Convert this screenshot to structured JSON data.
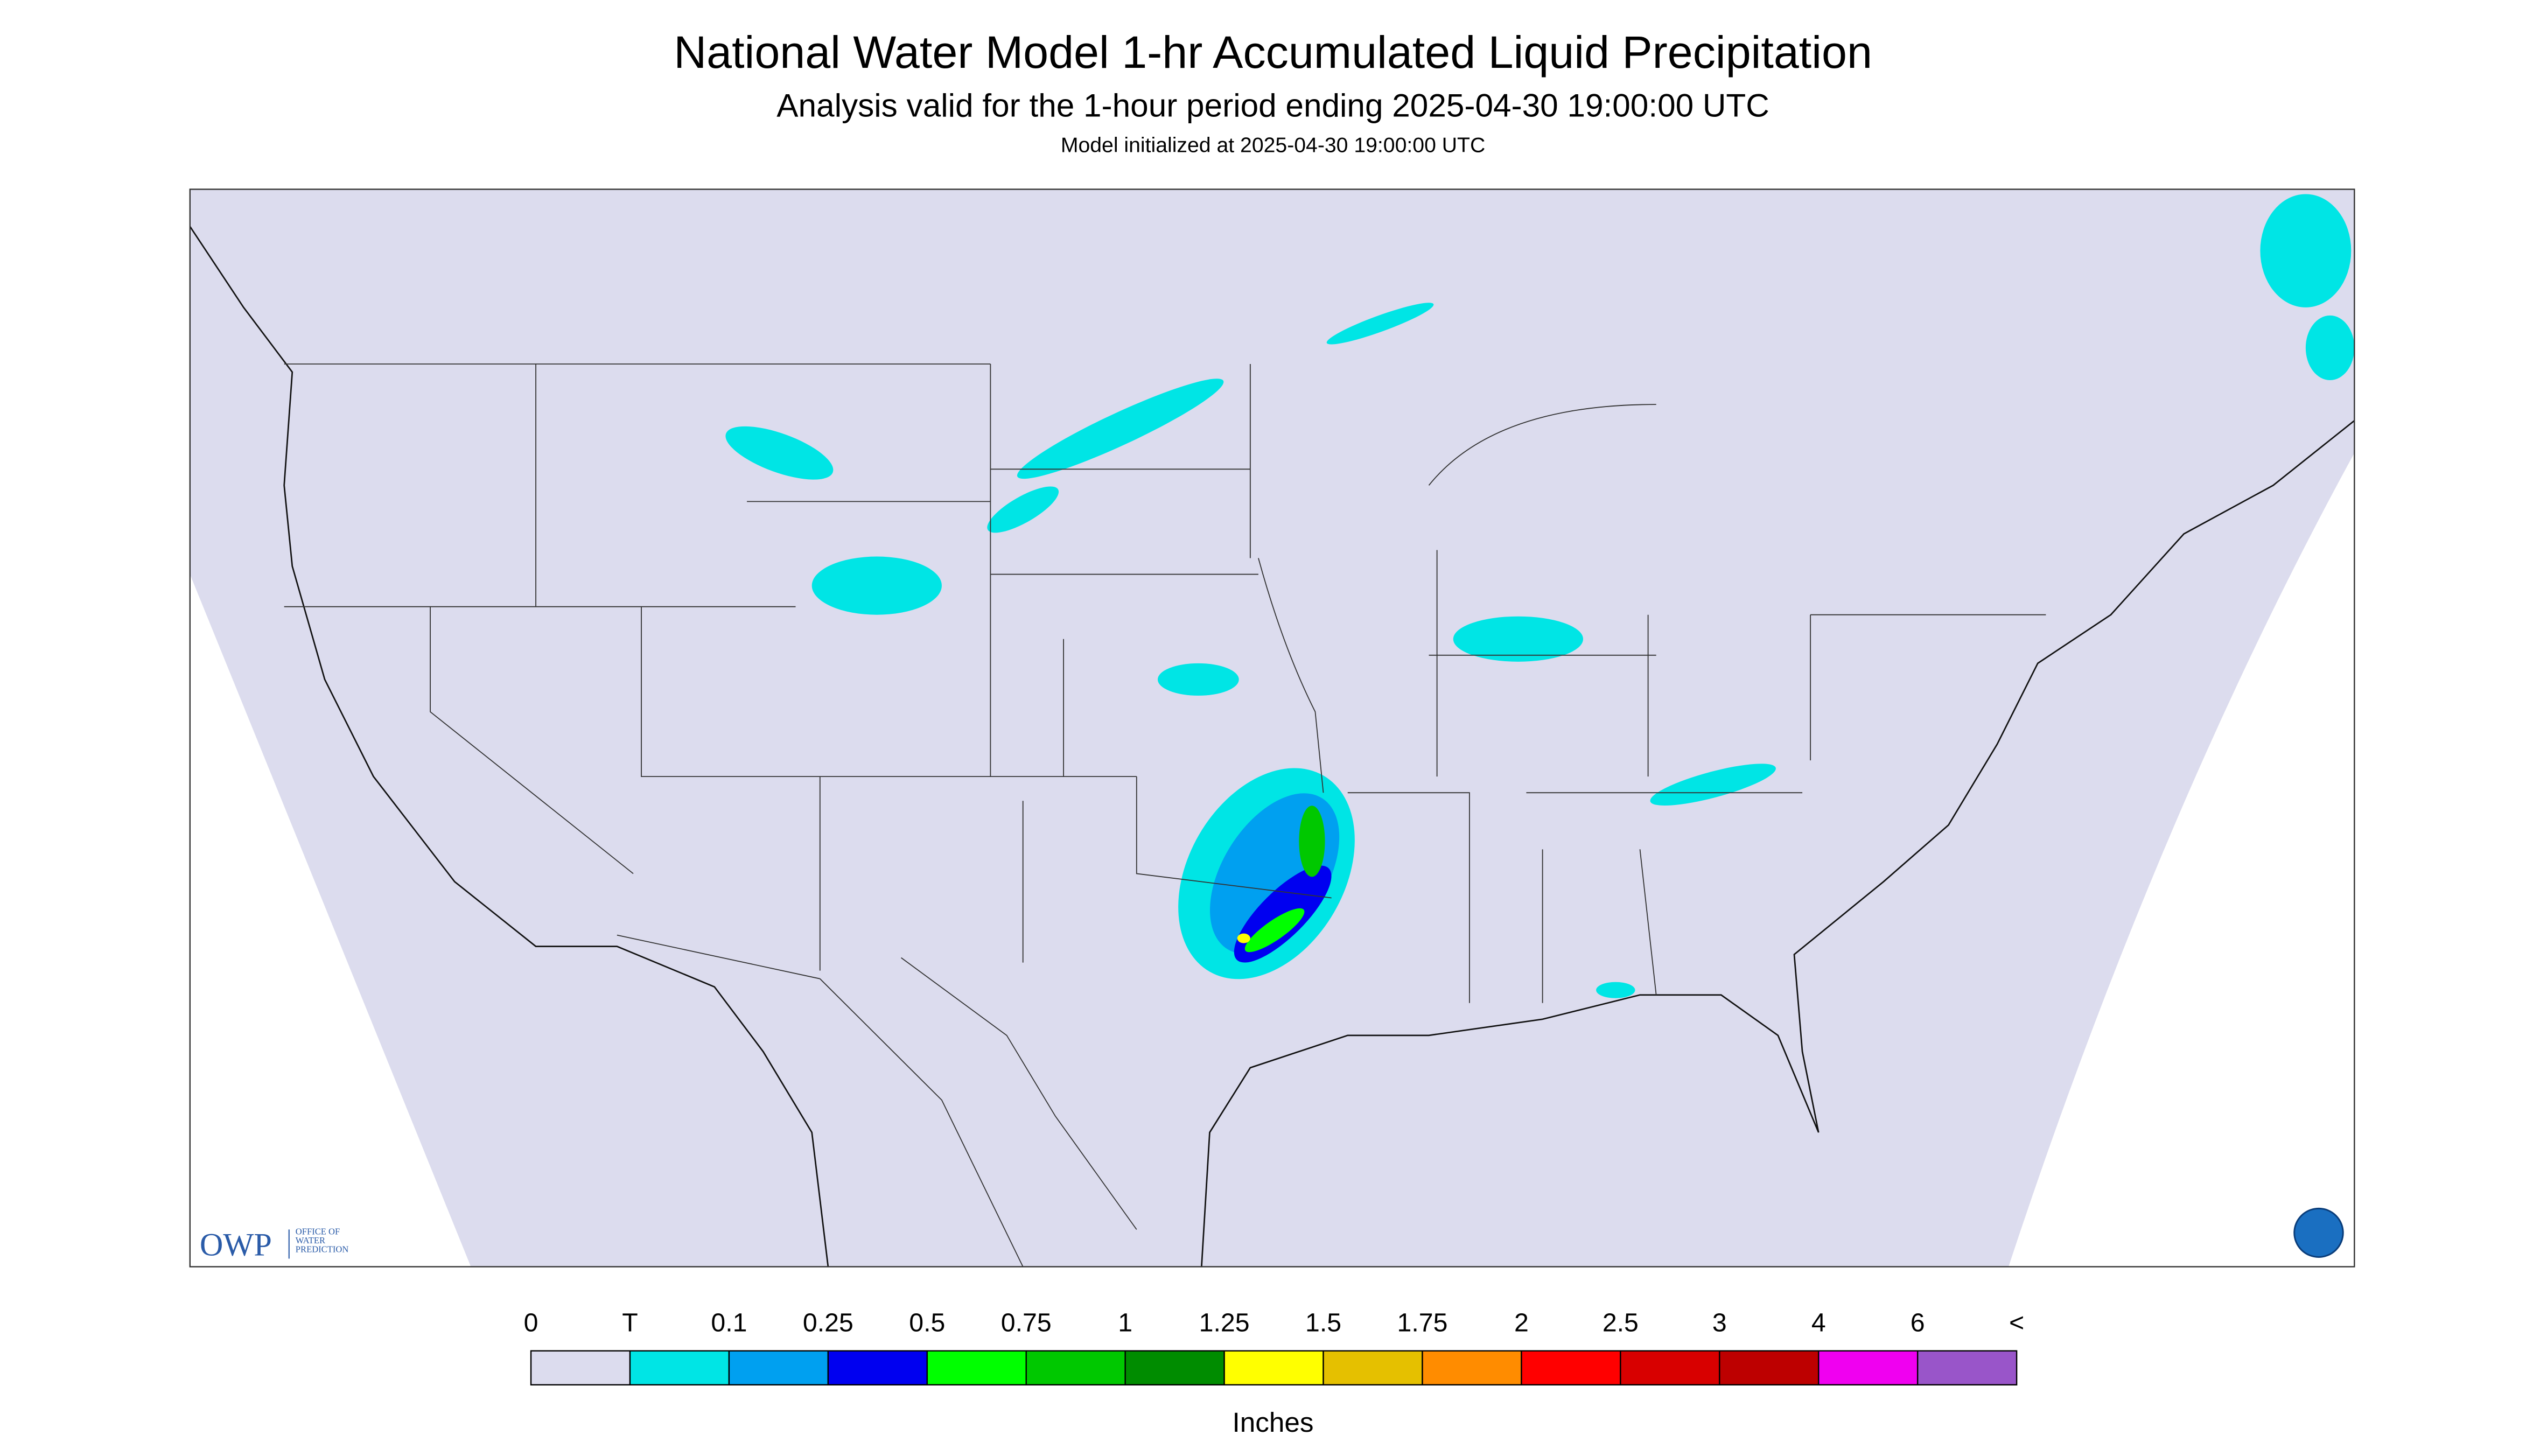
{
  "header": {
    "title": "National Water Model 1-hr Accumulated Liquid Precipitation",
    "subtitle": "Analysis valid for the 1-hour period ending 2025-04-30 19:00:00 UTC",
    "init": "Model initialized at 2025-04-30 19:00:00 UTC"
  },
  "logo": {
    "short": "OWP",
    "lines": [
      "OFFICE OF",
      "WATER",
      "PREDICTION"
    ]
  },
  "legend": {
    "labels": [
      "0",
      "T",
      "0.1",
      "0.25",
      "0.5",
      "0.75",
      "1",
      "1.25",
      "1.5",
      "1.75",
      "2",
      "2.5",
      "3",
      "4",
      "6",
      "<"
    ],
    "colors": [
      "#dcdcee",
      "#00e5e5",
      "#00a0f0",
      "#0000f0",
      "#00ff00",
      "#00c800",
      "#008c00",
      "#ffff00",
      "#e5c000",
      "#ff8c00",
      "#ff0000",
      "#d80000",
      "#bd0000",
      "#f000f0",
      "#9955c9"
    ],
    "unit": "Inches"
  }
}
